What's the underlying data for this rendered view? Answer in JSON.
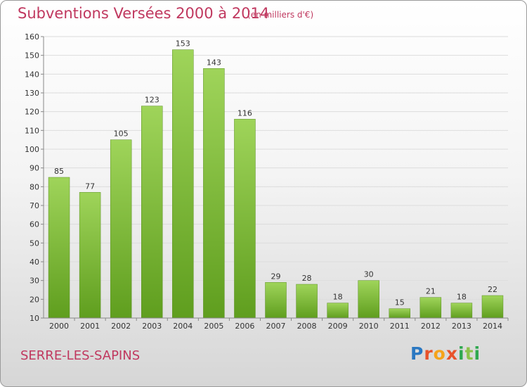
{
  "header": {
    "title": "Subventions Versées 2000 à 2014",
    "unit": "(en milliers d'€)"
  },
  "footer": {
    "place": "SERRE-LES-SAPINS",
    "logo": "Proxiti"
  },
  "colors": {
    "bar_top": "#9fd45a",
    "bar_bottom": "#5f9e1e",
    "title": "#c0385f"
  },
  "chart_data": {
    "type": "bar",
    "title": "Subventions Versées 2000 à 2014",
    "subtitle": "(en milliers d'€)",
    "categories": [
      "2000",
      "2001",
      "2002",
      "2003",
      "2004",
      "2005",
      "2006",
      "2007",
      "2008",
      "2009",
      "2010",
      "2011",
      "2012",
      "2013",
      "2014"
    ],
    "values": [
      85,
      77,
      105,
      123,
      153,
      143,
      116,
      29,
      28,
      18,
      30,
      15,
      21,
      18,
      22
    ],
    "ylim": [
      10,
      160
    ],
    "yticks": [
      10,
      20,
      30,
      40,
      50,
      60,
      70,
      80,
      90,
      100,
      110,
      120,
      130,
      140,
      150,
      160
    ],
    "grid": true,
    "legend": "none"
  }
}
